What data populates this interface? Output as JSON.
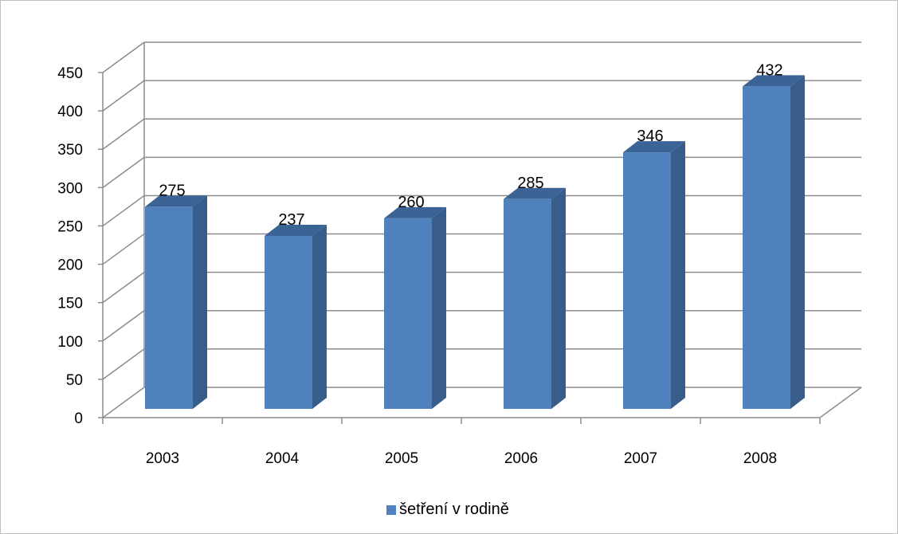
{
  "chart_data": {
    "type": "bar",
    "categories": [
      "2003",
      "2004",
      "2005",
      "2006",
      "2007",
      "2008"
    ],
    "series": [
      {
        "name": "šetření v rodině",
        "values": [
          275,
          237,
          260,
          285,
          346,
          432
        ]
      }
    ],
    "data_labels": [
      "275",
      "237",
      "260",
      "285",
      "346",
      "432"
    ],
    "y_ticks": [
      "0",
      "50",
      "100",
      "150",
      "200",
      "250",
      "300",
      "350",
      "400",
      "450"
    ],
    "ylim": [
      0,
      450
    ],
    "grid": true,
    "legend_position": "bottom",
    "three_d": true,
    "colors": {
      "bar_front": "#4f81bd",
      "bar_side": "#385d8a",
      "bar_top": "#3c6396",
      "gridline": "#8c8c8c",
      "frame": "#bfbfbf"
    }
  }
}
